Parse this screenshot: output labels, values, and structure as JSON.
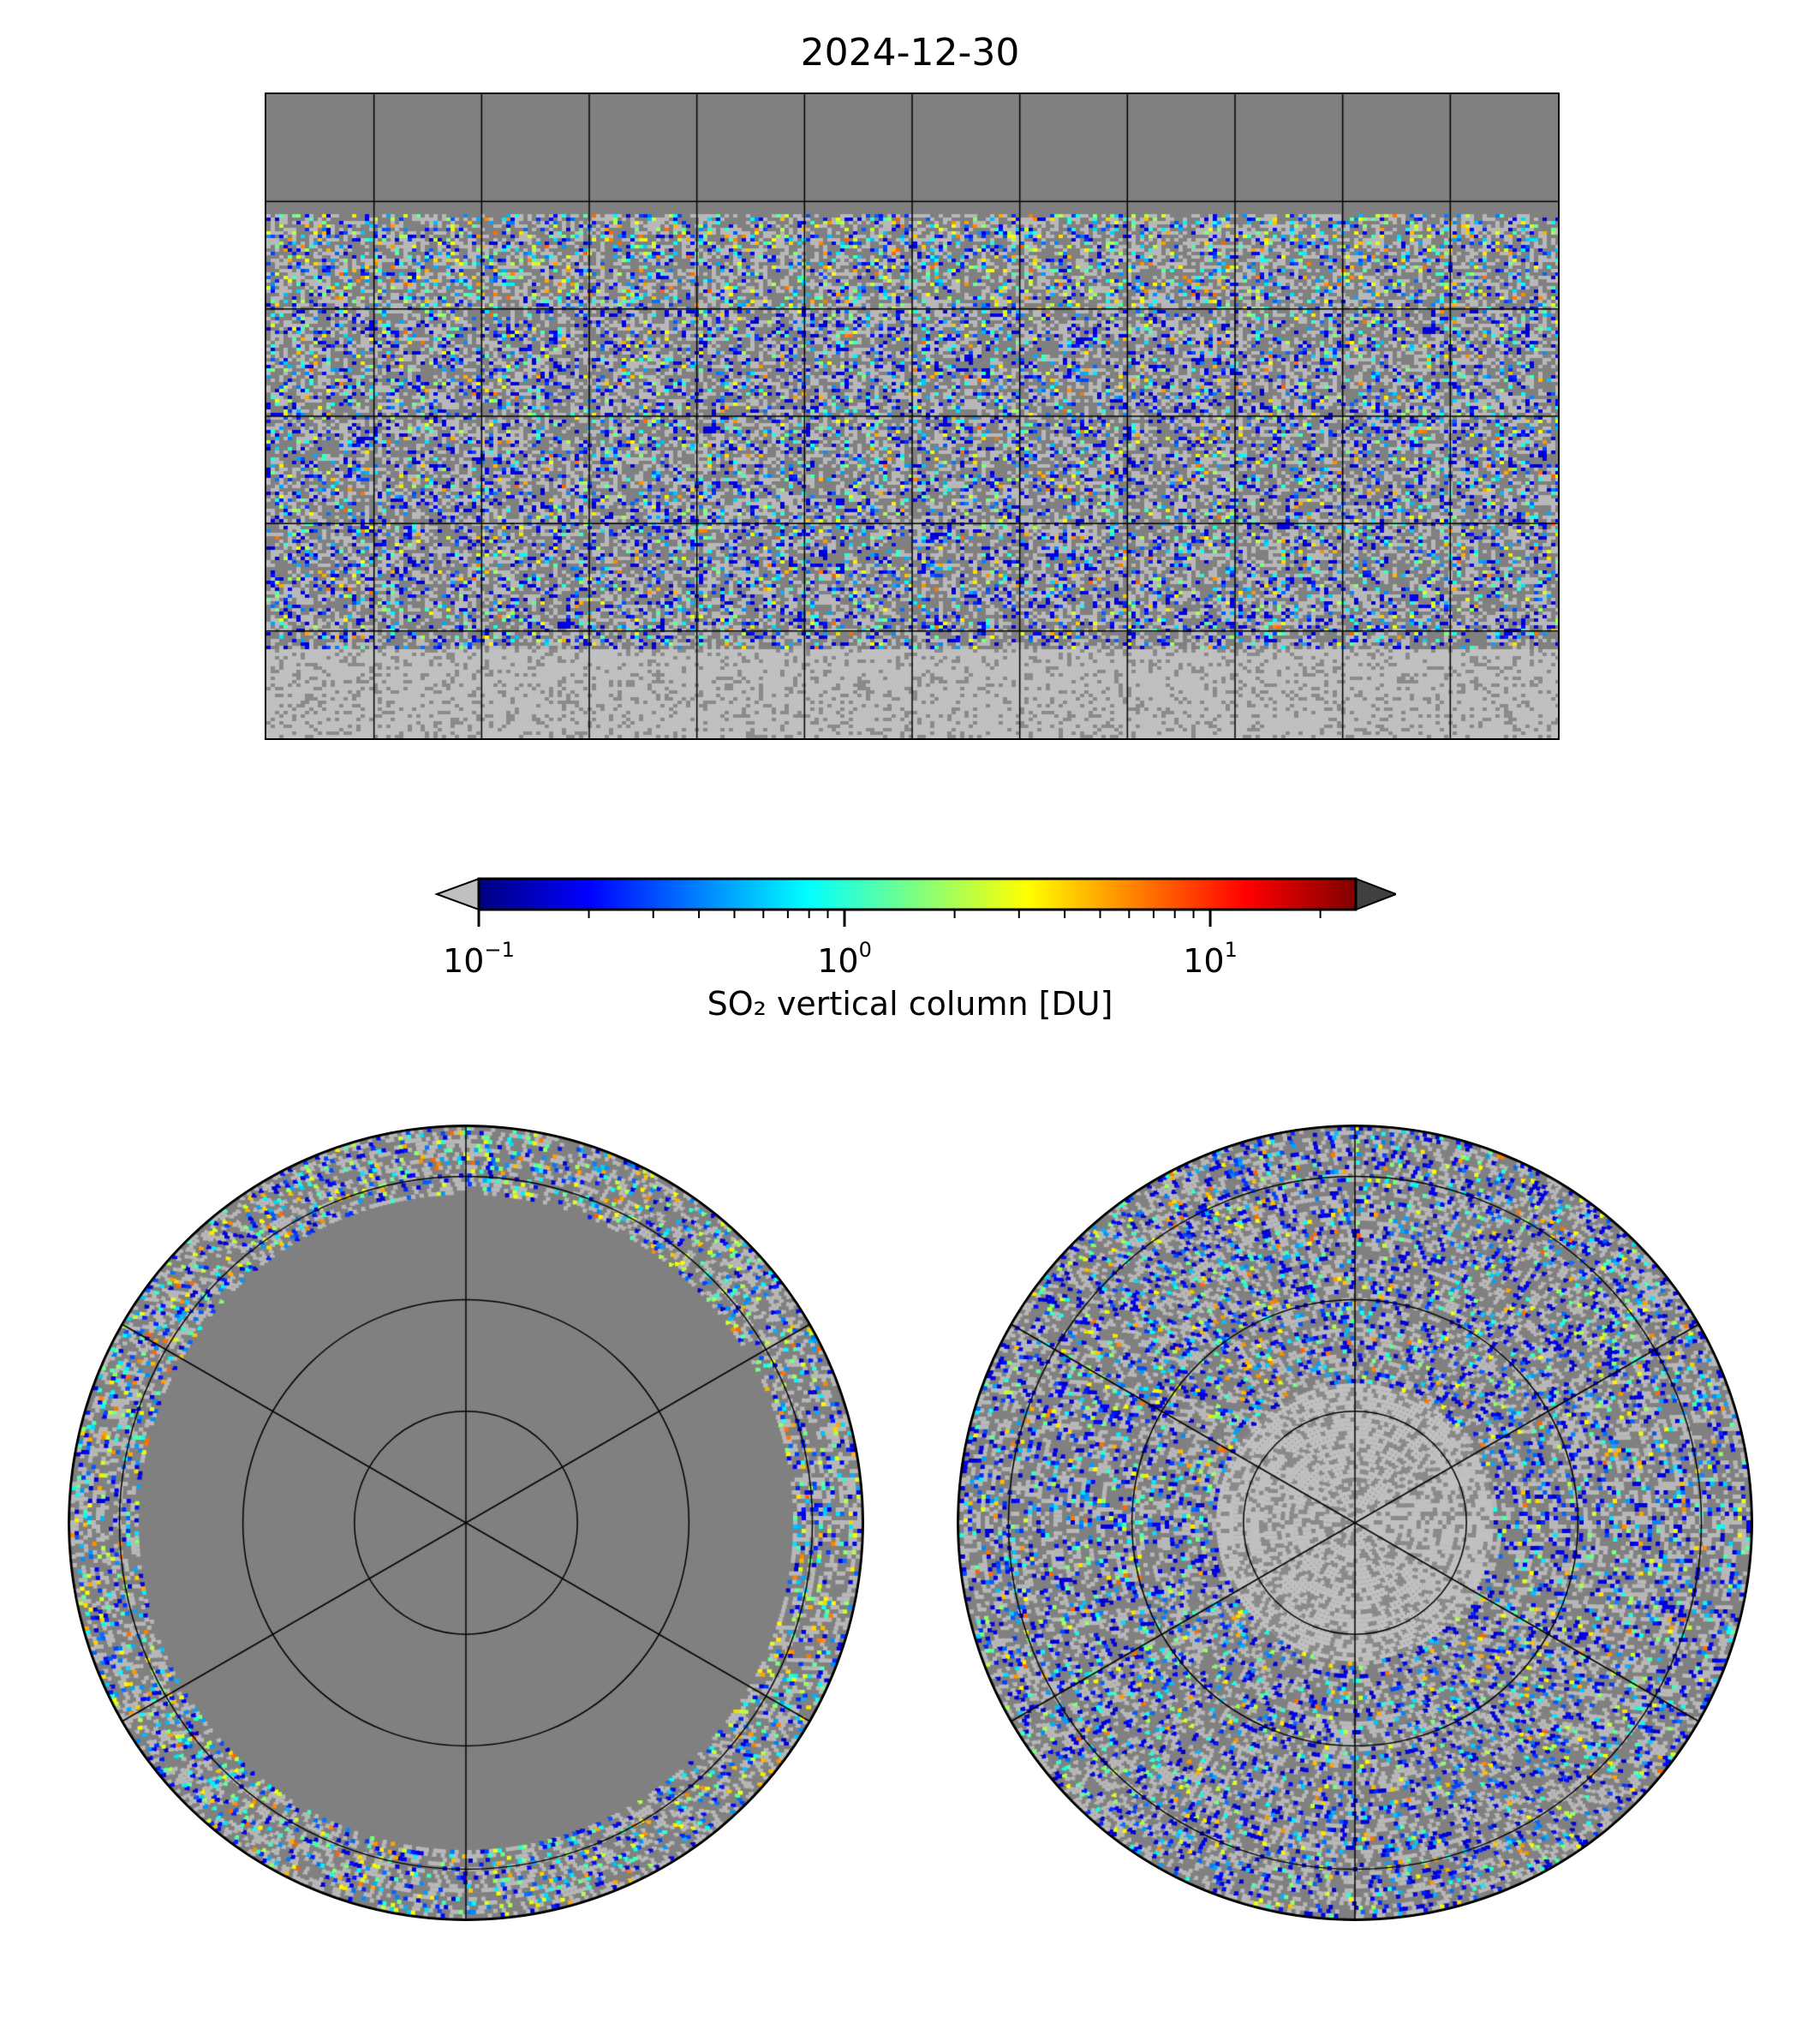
{
  "title": "2024-12-30",
  "colorbar": {
    "label": "SO₂ vertical column [DU]",
    "ticks": [
      {
        "base": "10",
        "exp": "−1",
        "value": 0.1
      },
      {
        "base": "10",
        "exp": "0",
        "value": 1
      },
      {
        "base": "10",
        "exp": "1",
        "value": 10
      }
    ],
    "range": [
      0.1,
      25
    ],
    "scale": "log",
    "colormap": "jet",
    "under_color": "#c0c0c0",
    "over_color": "#404040",
    "nodata_color": "#808080"
  },
  "chart_data": [
    {
      "type": "heatmap",
      "name": "global-map",
      "projection": "plate-carree",
      "grid_lines": {
        "lon_step_deg": 30,
        "lat_step_deg": 30
      },
      "lat_coverage": [
        -90,
        57
      ],
      "values_unit": "DU",
      "title": "2024-12-30"
    },
    {
      "type": "heatmap",
      "name": "north-polar-map",
      "projection": "north-polar-stereographic"
    },
    {
      "type": "heatmap",
      "name": "south-polar-map",
      "projection": "south-polar-stereographic"
    }
  ]
}
